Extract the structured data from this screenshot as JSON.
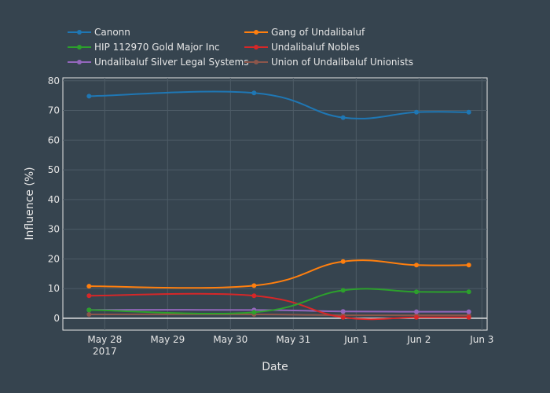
{
  "chart_data": {
    "type": "line",
    "xlabel": "Date",
    "ylabel": "Influence (%)",
    "x_ticks": [
      {
        "date": "2017-05-28",
        "label": "May 28",
        "sub": "2017"
      },
      {
        "date": "2017-05-29",
        "label": "May 29",
        "sub": ""
      },
      {
        "date": "2017-05-30",
        "label": "May 30",
        "sub": ""
      },
      {
        "date": "2017-05-31",
        "label": "May 31",
        "sub": ""
      },
      {
        "date": "2017-06-01",
        "label": "Jun 1",
        "sub": ""
      },
      {
        "date": "2017-06-02",
        "label": "Jun 2",
        "sub": ""
      },
      {
        "date": "2017-06-03",
        "label": "Jun 3",
        "sub": ""
      }
    ],
    "xlim": [
      "2017-05-27T08:00",
      "2017-06-03T02:00"
    ],
    "ylim": [
      -4,
      81
    ],
    "y_ticks": [
      0,
      10,
      20,
      30,
      40,
      50,
      60,
      70,
      80
    ],
    "grid": true,
    "legend_position": "top",
    "x": [
      "2017-05-27T18:00",
      "2017-05-30T09:00",
      "2017-05-31T19:00",
      "2017-06-01T23:00",
      "2017-06-02T19:00"
    ],
    "series": [
      {
        "name": "Canonn",
        "color": "#1f77b4",
        "values": [
          74.8,
          75.9,
          67.6,
          69.4,
          69.4
        ]
      },
      {
        "name": "Gang of Undalibaluf",
        "color": "#ff7f0e",
        "values": [
          10.8,
          11.0,
          19.1,
          17.9,
          17.9
        ]
      },
      {
        "name": "HIP 112970 Gold Major Inc",
        "color": "#2ca02c",
        "values": [
          2.8,
          2.0,
          9.4,
          8.9,
          8.9
        ]
      },
      {
        "name": "Undalibaluf Nobles",
        "color": "#d62728",
        "values": [
          7.6,
          7.6,
          0.3,
          0.3,
          0.3
        ]
      },
      {
        "name": "Undalibaluf Silver Legal Systems",
        "color": "#9467bd",
        "values": [
          2.8,
          2.8,
          2.3,
          2.2,
          2.2
        ]
      },
      {
        "name": "Union of Undalibaluf Unionists",
        "color": "#8c564b",
        "values": [
          1.3,
          1.3,
          1.0,
          1.0,
          1.0
        ]
      }
    ]
  }
}
